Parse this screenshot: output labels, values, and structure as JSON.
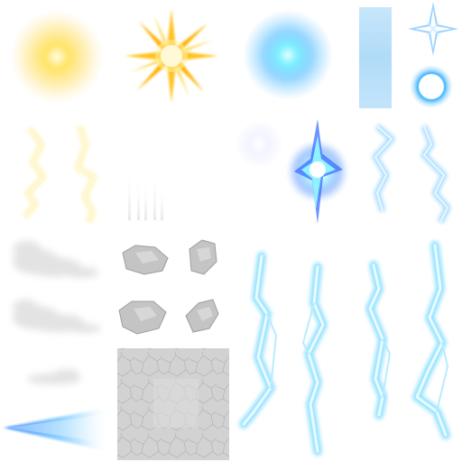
{
  "atlas": {
    "background": "#ffffff",
    "palette": {
      "yellow_core": "#fff3b0",
      "yellow_glow": "#ffd84a",
      "orange_ray": "#ffb300",
      "cyan_core": "#cfffff",
      "cyan_glow": "#39c6ff",
      "blue_deep": "#1f6cff",
      "smoke": "#e6e6e6",
      "rock": "#bdbdbd",
      "tile": "#d0d0d0"
    },
    "sprites": [
      {
        "name": "yellow-glow-orb",
        "icon": "sun-glow-icon"
      },
      {
        "name": "yellow-starburst",
        "icon": "starburst-icon"
      },
      {
        "name": "cyan-glow-orb",
        "icon": "blue-glow-icon"
      },
      {
        "name": "blue-light-bar",
        "icon": "light-bar-icon"
      },
      {
        "name": "blue-four-point-sparkle",
        "icon": "sparkle-icon"
      },
      {
        "name": "blue-ring-orb",
        "icon": "ring-orb-icon"
      },
      {
        "name": "yellow-lightning-bolts",
        "icon": "lightning-icon"
      },
      {
        "name": "faint-light-streaks",
        "icon": "streaks-icon"
      },
      {
        "name": "faint-white-orb",
        "icon": "faint-orb-icon"
      },
      {
        "name": "blue-impact-burst",
        "icon": "impact-burst-icon"
      },
      {
        "name": "blue-lightning-bolts",
        "icon": "lightning-icon"
      },
      {
        "name": "smoke-puffs",
        "icon": "smoke-icon"
      },
      {
        "name": "grey-rocks",
        "icon": "rock-icon"
      },
      {
        "name": "grey-cracked-tile",
        "icon": "cracked-tile-icon"
      },
      {
        "name": "blue-light-cone",
        "icon": "light-cone-icon"
      },
      {
        "name": "tall-cyan-lightning-strikes",
        "icon": "lightning-strike-icon"
      }
    ]
  }
}
